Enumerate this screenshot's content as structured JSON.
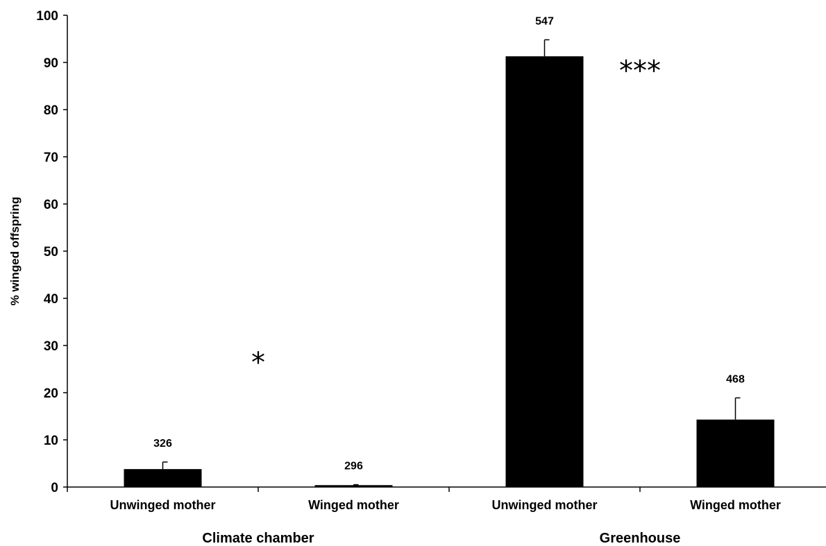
{
  "chart_data": {
    "type": "bar",
    "title": "",
    "ylabel": "% winged offspring",
    "xlabel": "",
    "ylim": [
      0,
      100
    ],
    "yticks": [
      0,
      10,
      20,
      30,
      40,
      50,
      60,
      70,
      80,
      90,
      100
    ],
    "bar_color": "#000000",
    "categories": [
      "Unwinged mother",
      "Winged mother",
      "Unwinged mother",
      "Winged mother"
    ],
    "groups": [
      {
        "name": "Climate chamber",
        "categories": [
          0,
          1
        ],
        "significance": "*"
      },
      {
        "name": "Greenhouse",
        "categories": [
          2,
          3
        ],
        "significance": "***"
      }
    ],
    "values": [
      3.8,
      0.4,
      91.3,
      14.3
    ],
    "errors": [
      1.5,
      0.1,
      3.5,
      4.6
    ],
    "n_labels": [
      "326",
      "296",
      "547",
      "468"
    ],
    "grid": false
  }
}
